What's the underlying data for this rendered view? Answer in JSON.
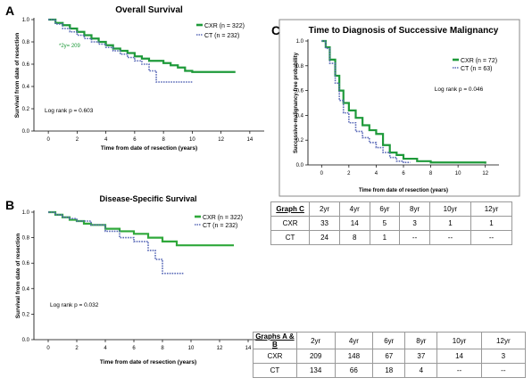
{
  "panel_letters": {
    "a": "A",
    "b": "B",
    "c": "C"
  },
  "chart_data": [
    {
      "id": "A",
      "type": "line",
      "title": "Overall Survival",
      "xlabel": "Time from date of resection (years)",
      "ylabel": "Survival from date of resection",
      "xlim": [
        -1,
        15
      ],
      "ylim": [
        0,
        1.0
      ],
      "xticks": [
        0,
        2,
        4,
        6,
        8,
        10,
        12,
        14
      ],
      "yticks": [
        0.0,
        0.2,
        0.4,
        0.6,
        0.8,
        1.0
      ],
      "annotation": "Log rank p = 0.603",
      "point_label": "*2y= 209",
      "series": [
        {
          "name": "CXR (n = 322)",
          "color": "#1e9a3a",
          "style": "solid",
          "x": [
            0,
            0.5,
            1,
            1.5,
            2,
            2.5,
            3,
            3.5,
            4,
            4.5,
            5,
            5.5,
            6,
            6.5,
            7,
            7.5,
            8,
            8.5,
            9,
            9.5,
            10,
            11,
            12,
            13
          ],
          "y": [
            1.0,
            0.97,
            0.95,
            0.92,
            0.89,
            0.86,
            0.83,
            0.8,
            0.77,
            0.74,
            0.72,
            0.7,
            0.67,
            0.65,
            0.63,
            0.63,
            0.61,
            0.59,
            0.57,
            0.54,
            0.53,
            0.53,
            0.53,
            0.53
          ]
        },
        {
          "name": "CT (n = 232)",
          "color": "#5a6ab8",
          "style": "dotted",
          "x": [
            0,
            0.5,
            1,
            1.5,
            2,
            2.5,
            3,
            3.5,
            4,
            4.5,
            5,
            5.5,
            6,
            6.5,
            7,
            7.5,
            8,
            8.5,
            9,
            9.5,
            10
          ],
          "y": [
            1.0,
            0.96,
            0.92,
            0.89,
            0.86,
            0.83,
            0.8,
            0.78,
            0.75,
            0.72,
            0.69,
            0.66,
            0.63,
            0.6,
            0.54,
            0.44,
            0.44,
            0.44,
            0.44,
            0.44,
            0.44
          ]
        }
      ]
    },
    {
      "id": "B",
      "type": "line",
      "title": "Disease-Specific Survival",
      "xlabel": "Time from date of resection (years)",
      "ylabel": "Survival from date of resection",
      "xlim": [
        -1,
        15
      ],
      "ylim": [
        0,
        1.0
      ],
      "xticks": [
        0,
        2,
        4,
        6,
        8,
        10,
        12,
        14
      ],
      "yticks": [
        0.0,
        0.2,
        0.4,
        0.6,
        0.8,
        1.0
      ],
      "annotation": "Log rank p = 0.032",
      "series": [
        {
          "name": "CXR (n = 322)",
          "color": "#2fa83a",
          "style": "solid",
          "x": [
            0,
            0.5,
            1,
            1.5,
            2,
            2.5,
            3,
            4,
            5,
            6,
            7,
            8,
            9,
            10,
            11,
            12,
            13
          ],
          "y": [
            1.0,
            0.98,
            0.96,
            0.94,
            0.93,
            0.91,
            0.9,
            0.87,
            0.85,
            0.83,
            0.8,
            0.77,
            0.74,
            0.74,
            0.74,
            0.74,
            0.74
          ]
        },
        {
          "name": "CT (n = 232)",
          "color": "#5a6ab8",
          "style": "dotted",
          "x": [
            0,
            0.5,
            1,
            1.5,
            2,
            3,
            4,
            5,
            6,
            7,
            7.5,
            8,
            8.5,
            9,
            9.5
          ],
          "y": [
            1.0,
            0.98,
            0.96,
            0.95,
            0.93,
            0.9,
            0.85,
            0.8,
            0.77,
            0.7,
            0.63,
            0.52,
            0.52,
            0.52,
            0.52
          ]
        }
      ]
    },
    {
      "id": "C",
      "type": "line",
      "title": "Time to Diagnosis of Successive Malignancy",
      "xlabel": "Time from date of resection (years)",
      "ylabel": "Successive-malignancy-free probability",
      "xlim": [
        -1,
        13
      ],
      "ylim": [
        0,
        1.0
      ],
      "xticks": [
        0,
        2,
        4,
        6,
        8,
        10,
        12
      ],
      "yticks": [
        0.0,
        0.2,
        0.4,
        0.6,
        0.8,
        1.0
      ],
      "annotation": "Log rank p = 0.046",
      "series": [
        {
          "name": "CXR (n = 72)",
          "color": "#1e9a3a",
          "style": "solid",
          "x": [
            0,
            0.3,
            0.6,
            1,
            1.3,
            1.6,
            2,
            2.5,
            3,
            3.5,
            4,
            4.5,
            5,
            5.5,
            6,
            7,
            8,
            9,
            10,
            11,
            12
          ],
          "y": [
            1.0,
            0.95,
            0.85,
            0.72,
            0.6,
            0.5,
            0.44,
            0.38,
            0.32,
            0.28,
            0.25,
            0.16,
            0.1,
            0.08,
            0.05,
            0.03,
            0.02,
            0.02,
            0.02,
            0.02,
            0.01
          ]
        },
        {
          "name": "CT (n = 63)",
          "color": "#5a6ab8",
          "style": "dotted",
          "x": [
            0,
            0.3,
            0.6,
            1,
            1.3,
            1.6,
            2,
            2.5,
            3,
            3.5,
            4,
            4.5,
            5,
            5.5,
            6,
            6.5
          ],
          "y": [
            1.0,
            0.94,
            0.82,
            0.66,
            0.52,
            0.42,
            0.34,
            0.27,
            0.22,
            0.18,
            0.14,
            0.1,
            0.06,
            0.03,
            0.02,
            0.02
          ]
        }
      ]
    }
  ],
  "table_c": {
    "rows": [
      [
        "Graph C",
        "2yr",
        "4yr",
        "6yr",
        "8yr",
        "10yr",
        "12yr"
      ],
      [
        "CXR",
        "33",
        "14",
        "5",
        "3",
        "1",
        "1"
      ],
      [
        "CT",
        "24",
        "8",
        "1",
        "--",
        "--",
        "--"
      ]
    ]
  },
  "table_ab": {
    "rows": [
      [
        "Graphs A & B",
        "2yr",
        "4yr",
        "6yr",
        "8yr",
        "10yr",
        "12yr"
      ],
      [
        "CXR",
        "209",
        "148",
        "67",
        "37",
        "14",
        "3"
      ],
      [
        "CT",
        "134",
        "66",
        "18",
        "4",
        "--",
        "--"
      ]
    ]
  }
}
